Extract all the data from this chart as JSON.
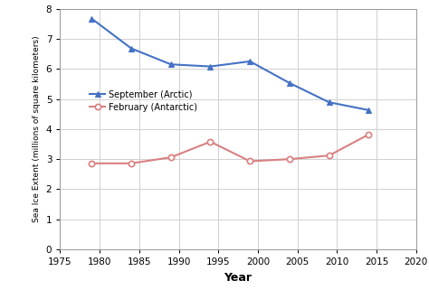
{
  "arctic_years": [
    1979,
    1984,
    1989,
    1994,
    1999,
    2004,
    2009,
    2014
  ],
  "arctic_values": [
    7.67,
    6.68,
    6.15,
    6.08,
    6.25,
    5.53,
    4.89,
    4.63
  ],
  "antarctic_years": [
    1979,
    1984,
    1989,
    1994,
    1999,
    2004,
    2009,
    2014
  ],
  "antarctic_values": [
    2.86,
    2.86,
    3.06,
    3.58,
    2.93,
    3.0,
    3.12,
    3.82
  ],
  "arctic_label": "September (Arctic)",
  "antarctic_label": "February (Antarctic)",
  "xlabel": "Year",
  "ylabel": "Sea Ice Extent (millions of square kilometers)",
  "xlim": [
    1975,
    2020
  ],
  "ylim": [
    0,
    8
  ],
  "xticks": [
    1975,
    1980,
    1985,
    1990,
    1995,
    2000,
    2005,
    2010,
    2015,
    2020
  ],
  "yticks": [
    0,
    1,
    2,
    3,
    4,
    5,
    6,
    7,
    8
  ],
  "arctic_color": "#4472C4",
  "antarctic_color": "#D98080",
  "bg_color": "#FFFFFF",
  "grid_color": "#D0D0D0"
}
